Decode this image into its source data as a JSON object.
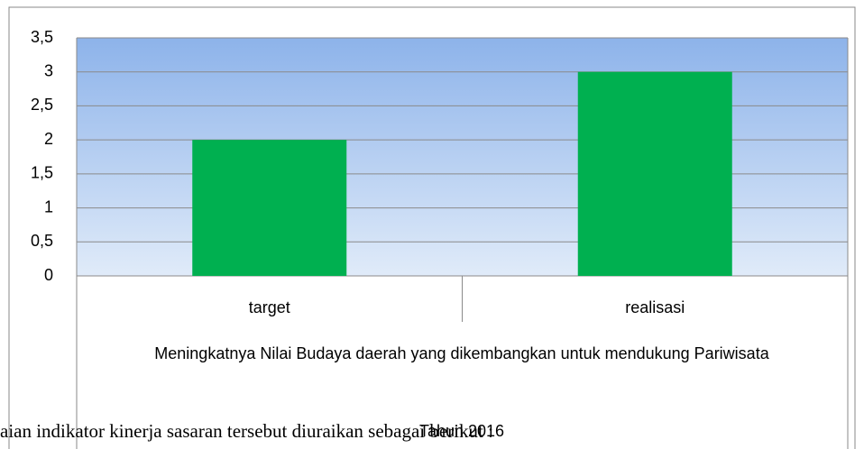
{
  "chart_data": {
    "type": "bar",
    "categories": [
      "target",
      "realisasi"
    ],
    "values": [
      2,
      3
    ],
    "color": "#00b050",
    "ylim": [
      0,
      3.5
    ],
    "yticks": [
      0,
      {
        "value": 0.5,
        "label": "0,5"
      },
      1,
      {
        "value": 1.5,
        "label": "1,5"
      },
      2,
      {
        "value": 2.5,
        "label": "2,5"
      },
      3,
      {
        "value": 3.5,
        "label": "3,5"
      }
    ],
    "grid": true,
    "xlabel": "Meningkatnya Nilai Budaya daerah yang dikembangkan untuk mendukung Pariwisata",
    "xlabel_sub": "Tahun 2016"
  },
  "body_text": "aian indikator kinerja sasaran tersebut diuraikan sebagai berikut :"
}
